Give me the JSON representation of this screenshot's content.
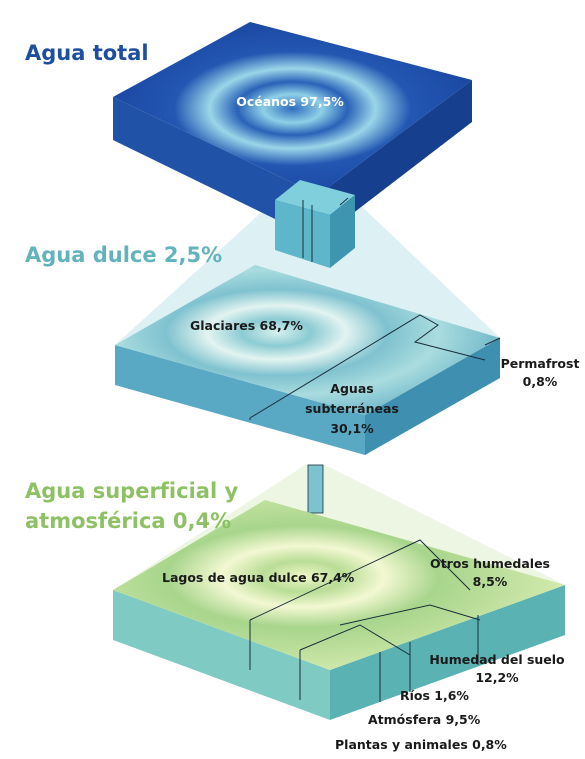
{
  "levels": [
    {
      "title": [
        "Agua total"
      ],
      "parts": [
        {
          "label": [
            "Océanos 97,5%"
          ]
        }
      ]
    },
    {
      "title": [
        "Agua dulce 2,5%"
      ],
      "parts": [
        {
          "label": [
            "Glaciares 68,7%"
          ]
        },
        {
          "label": [
            "Aguas",
            "subterráneas",
            "30,1%"
          ]
        },
        {
          "label": [
            "Permafrost",
            "0,8%"
          ]
        }
      ]
    },
    {
      "title": [
        "Agua superficial y",
        "atmosférica 0,4%"
      ],
      "parts": [
        {
          "label": [
            "Lagos de agua dulce 67,4%"
          ]
        },
        {
          "label": [
            "Otros humedales",
            "8,5%"
          ]
        },
        {
          "label": [
            "Humedad del suelo",
            "12,2%"
          ]
        },
        {
          "label": [
            "Ríos 1,6%"
          ]
        },
        {
          "label": [
            "Atmósfera 9,5%"
          ]
        },
        {
          "label": [
            "Plantas y animales 0,8%"
          ]
        }
      ]
    }
  ]
}
